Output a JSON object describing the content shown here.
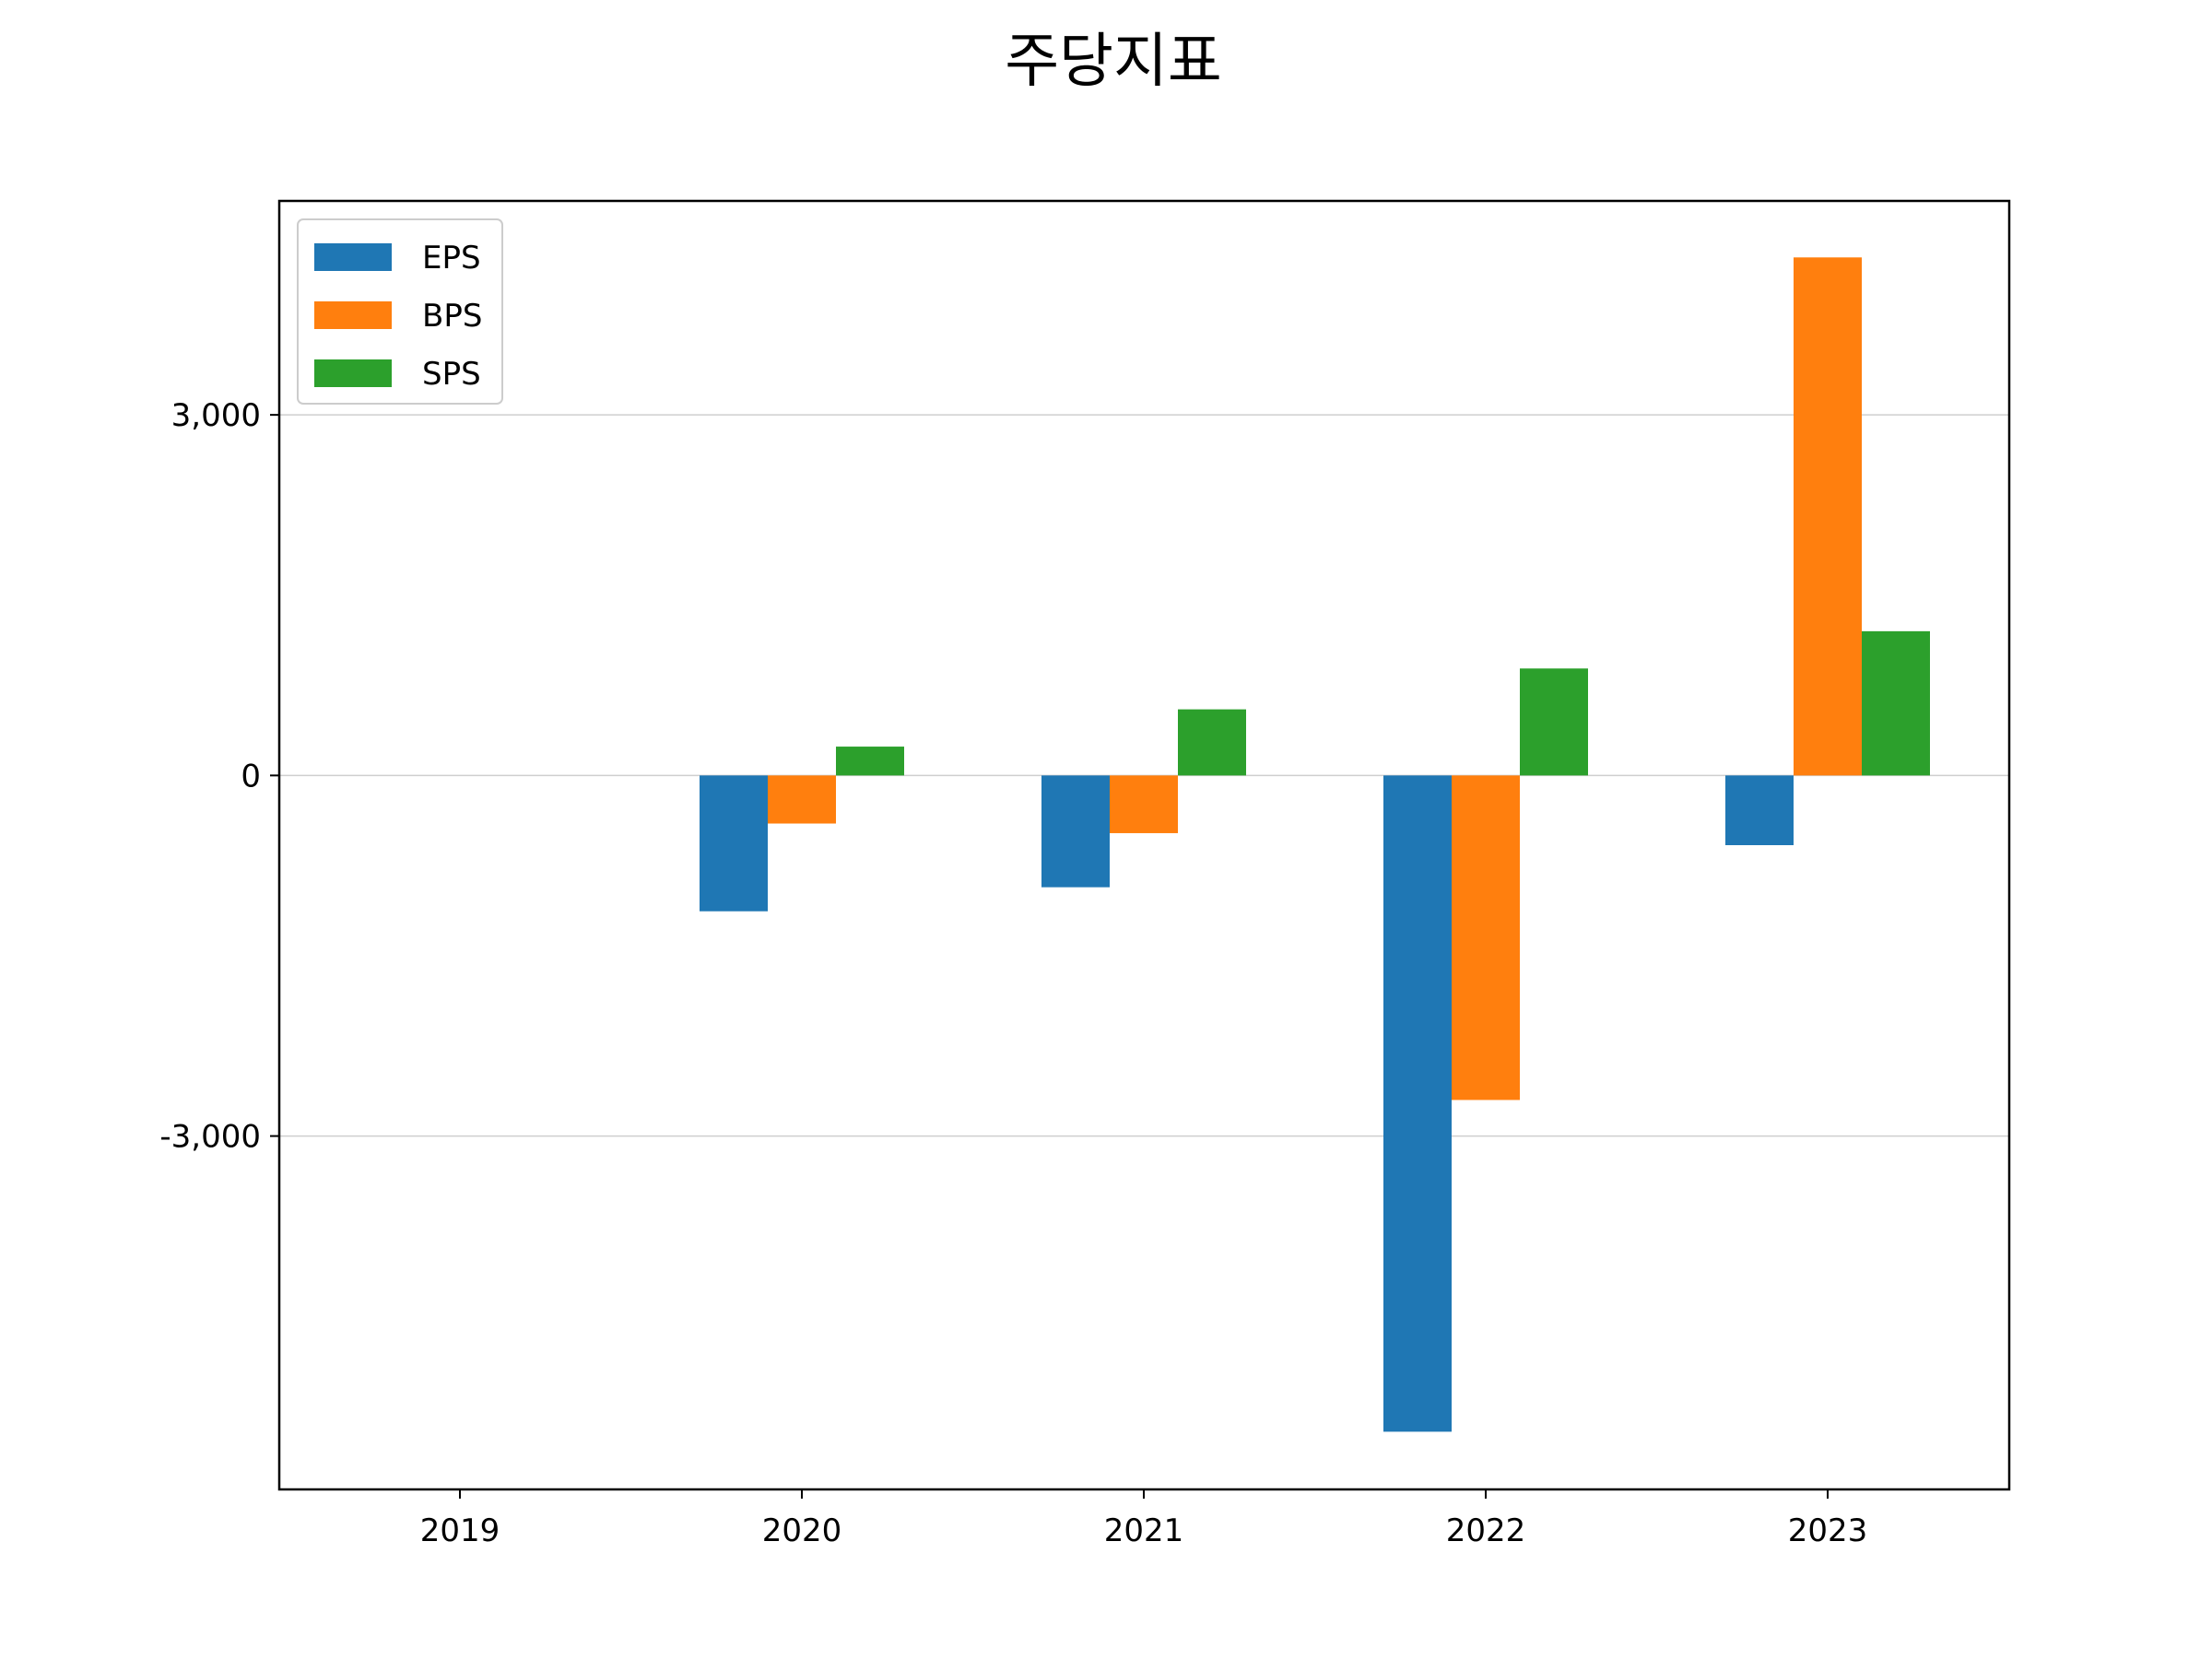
{
  "chart_data": {
    "type": "bar",
    "title": "주당지표",
    "xlabel": "",
    "ylabel": "",
    "categories": [
      "2019",
      "2020",
      "2021",
      "2022",
      "2023"
    ],
    "series": [
      {
        "name": "EPS",
        "color": "#1f77b4",
        "values": [
          null,
          -1130,
          -930,
          -5460,
          -580
        ]
      },
      {
        "name": "BPS",
        "color": "#ff7f0e",
        "values": [
          null,
          -400,
          -480,
          -2700,
          4310
        ]
      },
      {
        "name": "SPS",
        "color": "#2ca02c",
        "values": [
          null,
          240,
          550,
          890,
          1200
        ]
      }
    ],
    "ylim": [
      -5940,
      4780
    ],
    "yticks": [
      -3000,
      0,
      3000
    ],
    "ytick_labels": [
      "-3,000",
      "0",
      "3,000"
    ],
    "grid": "horizontal",
    "legend_position": "top-left"
  }
}
